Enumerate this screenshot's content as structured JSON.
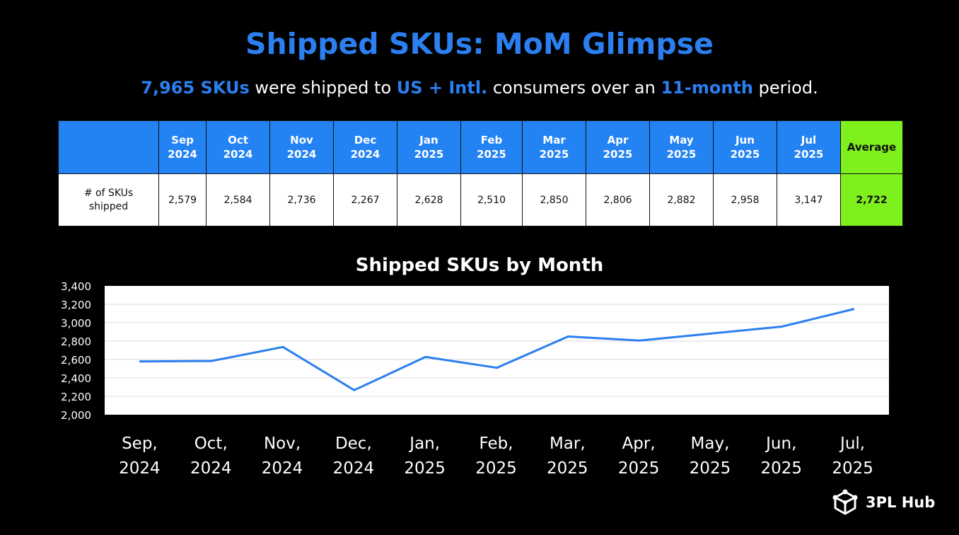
{
  "header": {
    "title": "Shipped SKUs: MoM Glimpse",
    "subtitle_parts": [
      {
        "text": "7,965 SKUs",
        "highlight": true
      },
      {
        "text": " were shipped to ",
        "highlight": false
      },
      {
        "text": "US + Intl.",
        "highlight": true
      },
      {
        "text": " consumers over an ",
        "highlight": false
      },
      {
        "text": "11-month",
        "highlight": true
      },
      {
        "text": " period.",
        "highlight": false
      }
    ]
  },
  "table": {
    "row_label_lines": [
      "# of SKUs",
      "shipped"
    ],
    "months": [
      {
        "m": "Sep",
        "y": "2024",
        "value": "2,579"
      },
      {
        "m": "Oct",
        "y": "2024",
        "value": "2,584"
      },
      {
        "m": "Nov",
        "y": "2024",
        "value": "2,736"
      },
      {
        "m": "Dec",
        "y": "2024",
        "value": "2,267"
      },
      {
        "m": "Jan",
        "y": "2025",
        "value": "2,628"
      },
      {
        "m": "Feb",
        "y": "2025",
        "value": "2,510"
      },
      {
        "m": "Mar",
        "y": "2025",
        "value": "2,850"
      },
      {
        "m": "Apr",
        "y": "2025",
        "value": "2,806"
      },
      {
        "m": "May",
        "y": "2025",
        "value": "2,882"
      },
      {
        "m": "Jun",
        "y": "2025",
        "value": "2,958"
      },
      {
        "m": "Jul",
        "y": "2025",
        "value": "3,147"
      }
    ],
    "average_label": "Average",
    "average_value": "2,722"
  },
  "chart_data": {
    "type": "line",
    "title": "Shipped SKUs by Month",
    "categories": [
      [
        "Sep,",
        "2024"
      ],
      [
        "Oct,",
        "2024"
      ],
      [
        "Nov,",
        "2024"
      ],
      [
        "Dec,",
        "2024"
      ],
      [
        "Jan,",
        "2025"
      ],
      [
        "Feb,",
        "2025"
      ],
      [
        "Mar,",
        "2025"
      ],
      [
        "Apr,",
        "2025"
      ],
      [
        "May,",
        "2025"
      ],
      [
        "Jun,",
        "2025"
      ],
      [
        "Jul,",
        "2025"
      ]
    ],
    "series": [
      {
        "values": [
          2579,
          2584,
          2736,
          2267,
          2628,
          2510,
          2850,
          2806,
          2882,
          2958,
          3147
        ]
      }
    ],
    "ylim": [
      2000,
      3400
    ],
    "yticks": [
      "2,000",
      "2,200",
      "2,400",
      "2,600",
      "2,800",
      "3,000",
      "3,200",
      "3,400"
    ],
    "ytick_values": [
      2000,
      2200,
      2400,
      2600,
      2800,
      3000,
      3200,
      3400
    ],
    "grid": true,
    "line_color": "#2b7ff0"
  },
  "logo": {
    "text": "3PL Hub",
    "icon": "cube-network-icon"
  }
}
